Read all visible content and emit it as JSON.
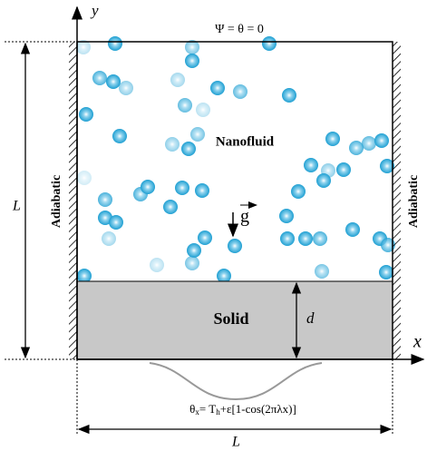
{
  "axes": {
    "y": "y",
    "x": "x"
  },
  "top_boundary": "Ψ = θ = 0",
  "fluid_label": "Nanofluid",
  "left_wall": "Adiabatic",
  "right_wall": "Adiabatic",
  "height_label": "L",
  "solid_label": "Solid",
  "solid_thickness": "d",
  "gravity": "g",
  "bottom_condition": {
    "theta": "θ",
    "theta_sub": "x",
    "mid": "= T",
    "t_sub": "h",
    "rest": "+ε[1-cos(2πλx)]"
  },
  "width_label": "L"
}
